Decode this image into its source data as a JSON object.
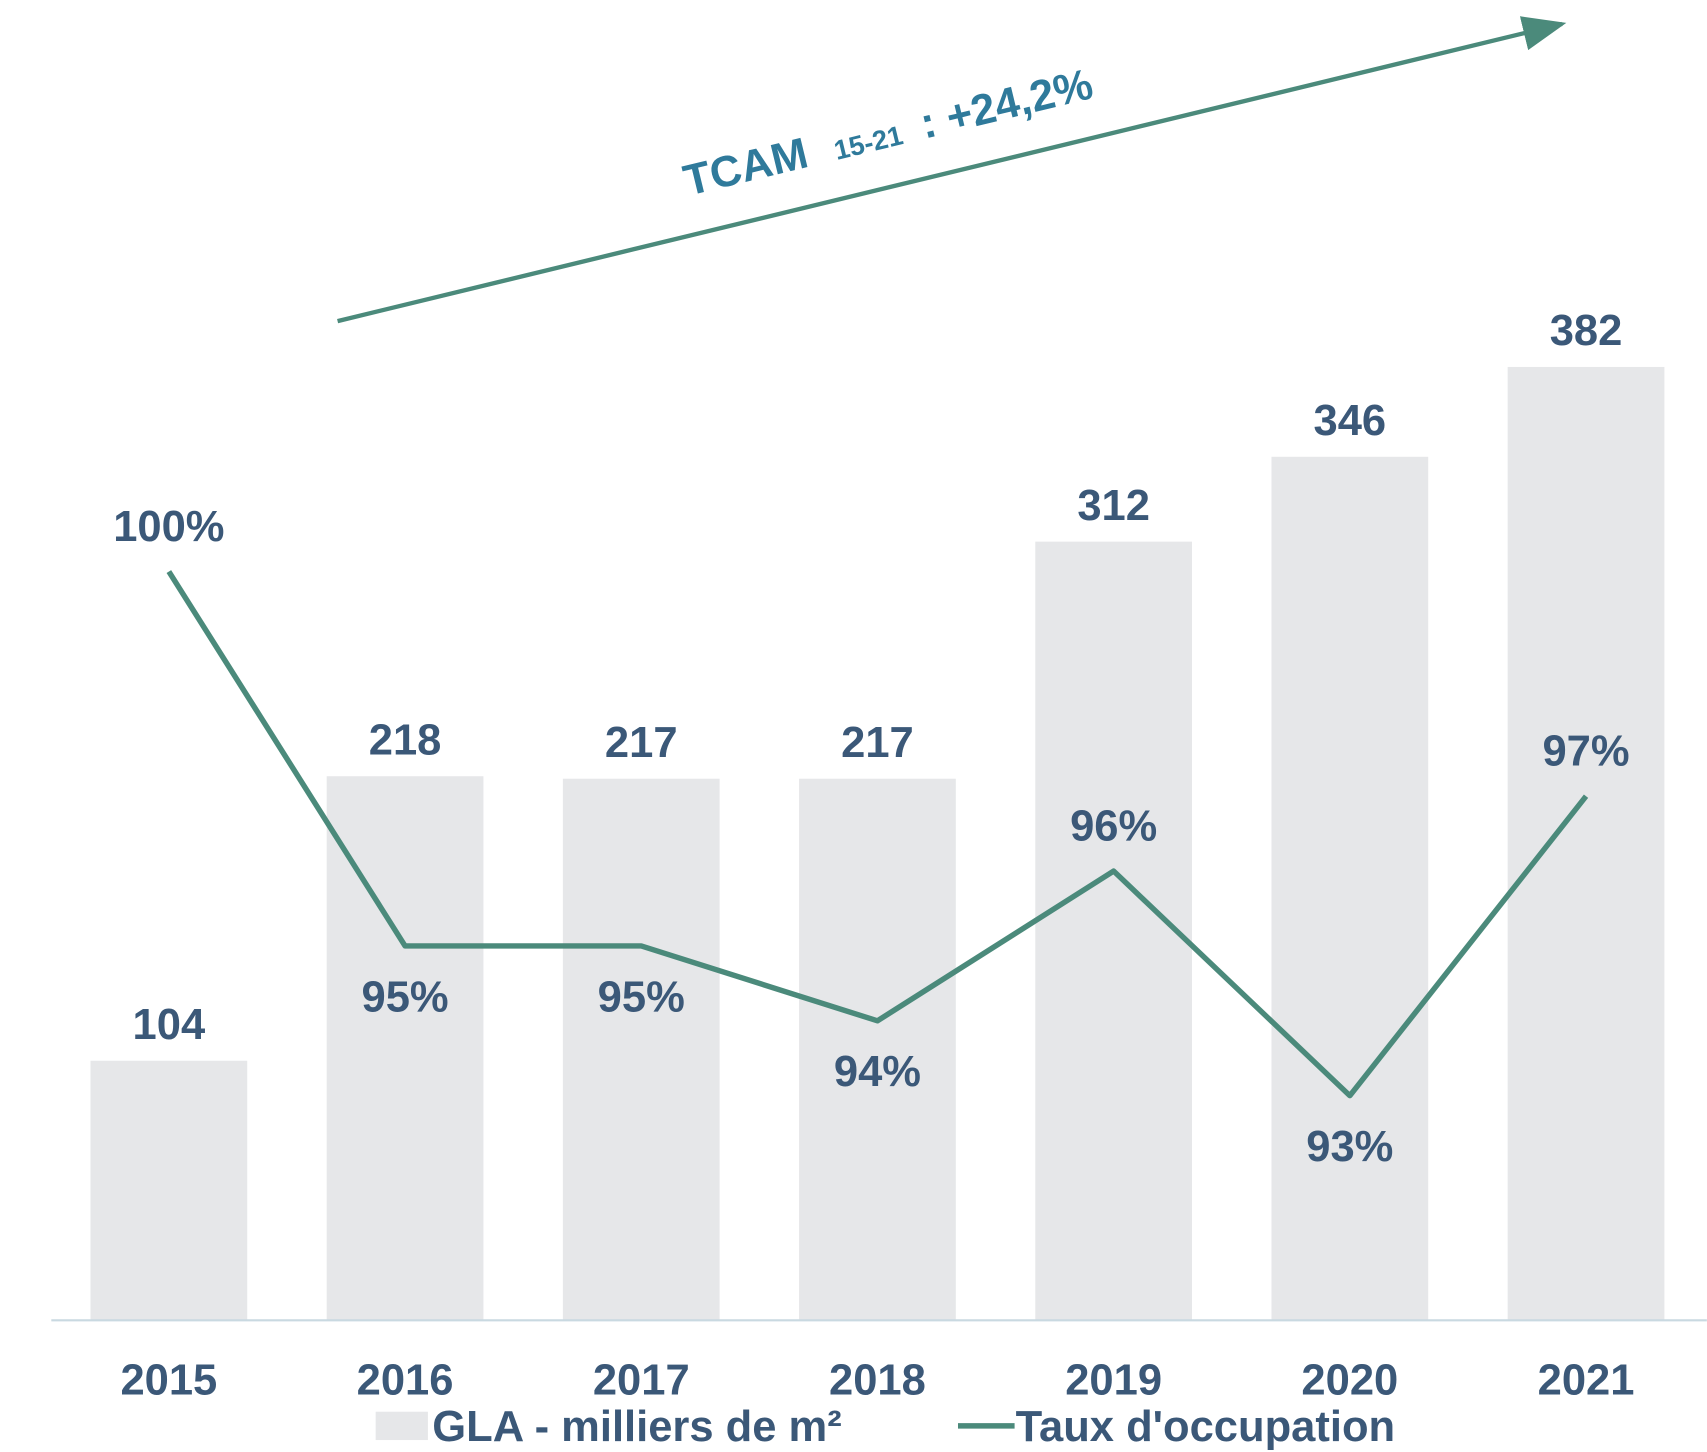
{
  "chart_data": {
    "type": "bar",
    "categories": [
      "2015",
      "2016",
      "2017",
      "2018",
      "2019",
      "2020",
      "2021"
    ],
    "series": [
      {
        "name": "GLA - milliers de m²",
        "color": "#e6e7e9",
        "values": [
          104,
          218,
          217,
          217,
          312,
          346,
          382
        ]
      },
      {
        "name": "Taux d'occupation",
        "type": "line",
        "axis": "y2",
        "color": "#4b8a7b",
        "values": [
          100,
          95,
          95,
          94,
          96,
          93,
          97
        ],
        "value_labels": [
          "100%",
          "95%",
          "95%",
          "94%",
          "96%",
          "93%",
          "97%"
        ]
      }
    ],
    "ylim": [
      0,
      420
    ],
    "y2lim": [
      90,
      104
    ],
    "annotation": {
      "text": "TCAM",
      "subscript": "15-21",
      "suffix": ": +24,2%",
      "color": "#2f7a9b",
      "arrow_color": "#4b8a7b"
    },
    "legend": "bottom"
  }
}
